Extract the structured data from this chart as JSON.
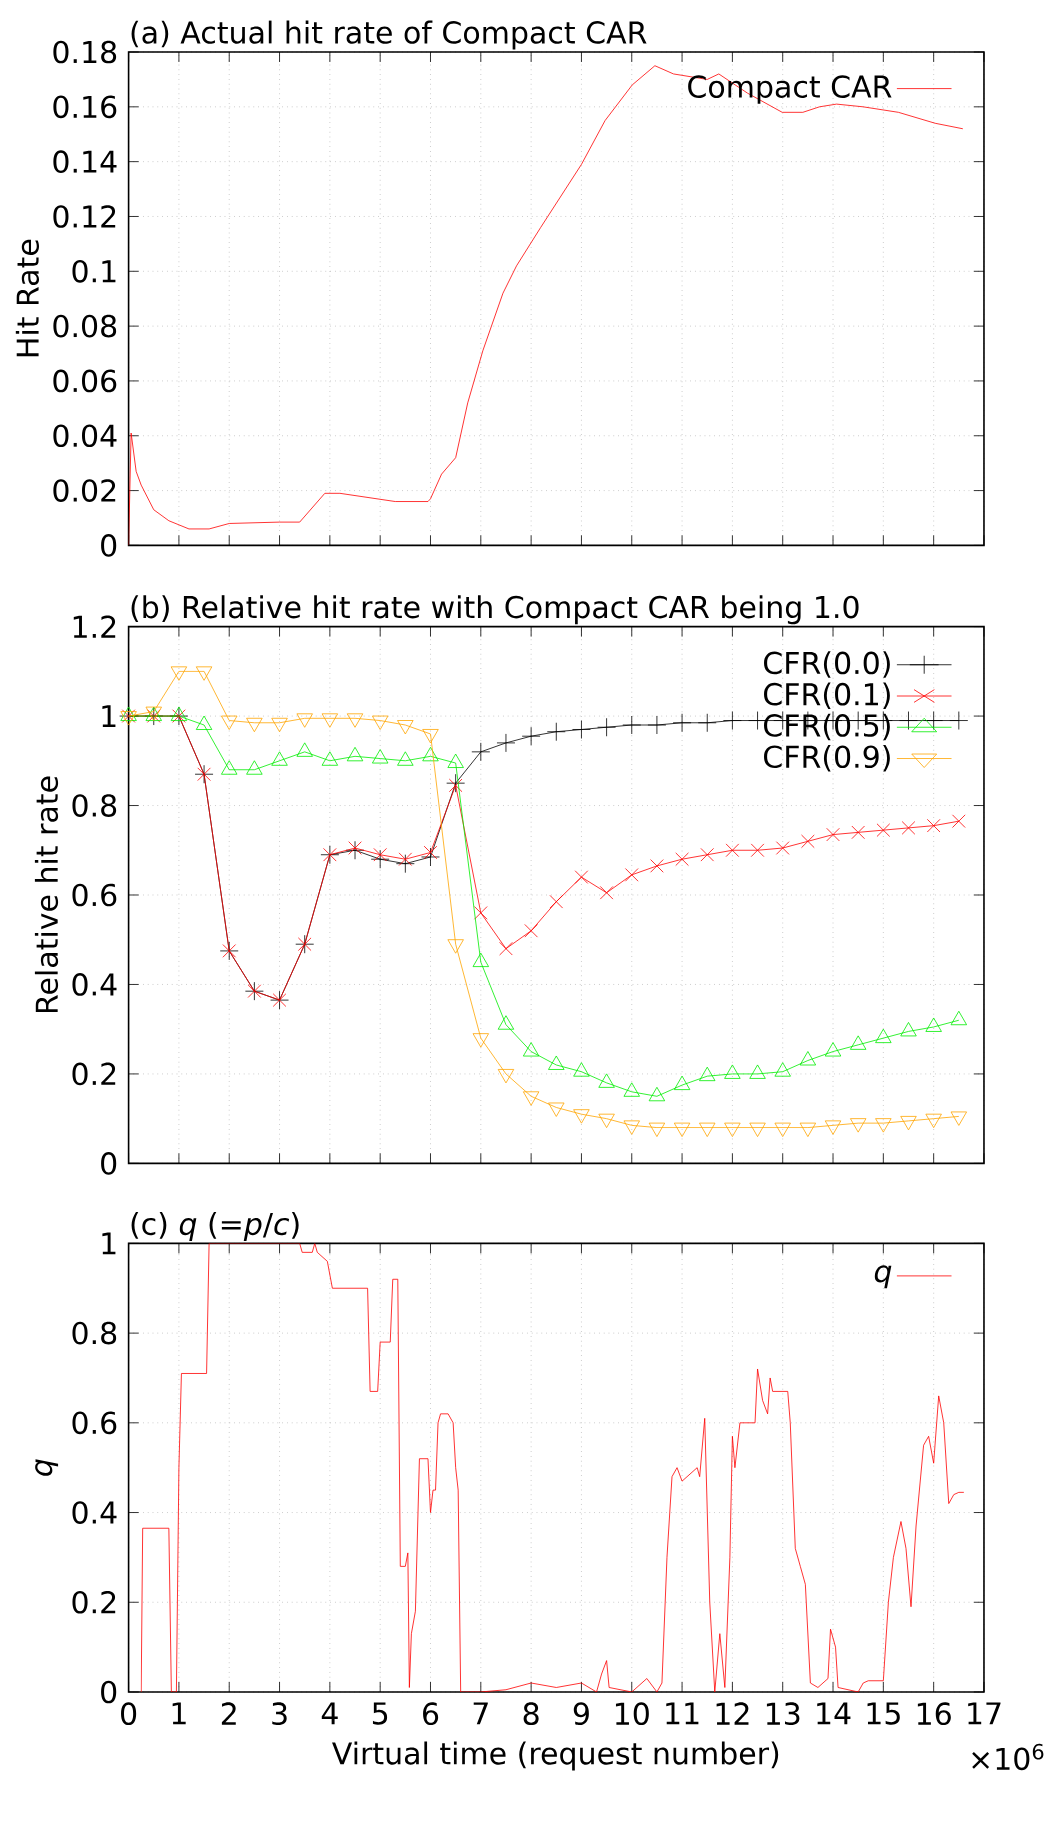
{
  "chart_data": [
    {
      "type": "line",
      "title": "(a) Actual hit rate of Compact CAR",
      "ylabel": "Hit Rate",
      "xlim": [
        0,
        17
      ],
      "xticks": [
        0,
        1,
        2,
        3,
        4,
        5,
        6,
        7,
        8,
        9,
        10,
        11,
        12,
        13,
        14,
        15,
        16,
        17
      ],
      "ylim": [
        0,
        0.18
      ],
      "yticks": [
        0,
        0.02,
        0.04,
        0.06,
        0.08,
        0.1,
        0.12,
        0.14,
        0.16,
        0.18
      ],
      "tick_labels": "y",
      "grid": true,
      "legend": "top right",
      "x": [
        0,
        0.05,
        0.15,
        0.25,
        0.5,
        0.8,
        1.2,
        1.6,
        2.0,
        3.0,
        3.4,
        3.9,
        4.2,
        5.3,
        5.95,
        6.0,
        6.22,
        6.5,
        6.74,
        7.04,
        7.44,
        7.71,
        8.19,
        9.0,
        9.47,
        10.01,
        10.46,
        10.83,
        11.5,
        11.73,
        12.3,
        12.99,
        13.4,
        13.73,
        14.07,
        14.6,
        15.3,
        16.03,
        16.58
      ],
      "series": [
        {
          "name": "Compact CAR",
          "color": "#ff0000",
          "values": [
            0,
            0.041,
            0.027,
            0.022,
            0.013,
            0.009,
            0.006,
            0.006,
            0.008,
            0.0085,
            0.0085,
            0.019,
            0.019,
            0.016,
            0.016,
            0.017,
            0.026,
            0.032,
            0.052,
            0.071,
            0.092,
            0.102,
            0.116,
            0.139,
            0.155,
            0.168,
            0.175,
            0.172,
            0.17,
            0.172,
            0.165,
            0.158,
            0.158,
            0.16,
            0.161,
            0.16,
            0.158,
            0.154,
            0.152
          ]
        }
      ]
    },
    {
      "type": "line",
      "title": "(b) Relative hit rate with Compact CAR being 1.0",
      "ylabel": "Relative hit rate",
      "xlim": [
        0,
        17
      ],
      "xticks": [
        0,
        1,
        2,
        3,
        4,
        5,
        6,
        7,
        8,
        9,
        10,
        11,
        12,
        13,
        14,
        15,
        16,
        17
      ],
      "ylim": [
        0,
        1.2
      ],
      "yticks": [
        0,
        0.2,
        0.4,
        0.6,
        0.8,
        1,
        1.2
      ],
      "tick_labels": "y",
      "grid": true,
      "legend": "top right",
      "x": [
        0,
        0.5,
        1,
        1.5,
        2,
        2.5,
        3,
        3.5,
        4,
        4.5,
        5,
        5.5,
        6,
        6.5,
        7,
        7.5,
        8,
        8.5,
        9,
        9.5,
        10,
        10.5,
        11,
        11.5,
        12,
        12.5,
        13,
        13.5,
        14,
        14.5,
        15,
        15.5,
        16,
        16.5
      ],
      "series": [
        {
          "name": "CFR(0.0)",
          "color": "#000000",
          "marker": "plus",
          "values": [
            1.0,
            1.0,
            1.0,
            0.87,
            0.475,
            0.385,
            0.365,
            0.49,
            0.69,
            0.7,
            0.68,
            0.67,
            0.685,
            0.85,
            0.92,
            0.94,
            0.955,
            0.965,
            0.97,
            0.975,
            0.98,
            0.98,
            0.985,
            0.985,
            0.99,
            0.99,
            0.99,
            0.99,
            0.99,
            0.99,
            0.99,
            0.99,
            0.99,
            0.99
          ]
        },
        {
          "name": "CFR(0.1)",
          "color": "#ff0000",
          "marker": "cross",
          "values": [
            1.0,
            1.0,
            1.0,
            0.87,
            0.475,
            0.385,
            0.365,
            0.49,
            0.69,
            0.705,
            0.69,
            0.68,
            0.695,
            0.845,
            0.56,
            0.48,
            0.52,
            0.585,
            0.64,
            0.605,
            0.645,
            0.665,
            0.68,
            0.69,
            0.7,
            0.7,
            0.705,
            0.72,
            0.735,
            0.74,
            0.745,
            0.75,
            0.755,
            0.765
          ]
        },
        {
          "name": "CFR(0.5)",
          "color": "#00ee00",
          "marker": "triangle",
          "values": [
            1.0,
            1.0,
            1.0,
            0.98,
            0.88,
            0.88,
            0.9,
            0.92,
            0.9,
            0.91,
            0.905,
            0.9,
            0.91,
            0.895,
            0.45,
            0.31,
            0.25,
            0.22,
            0.205,
            0.18,
            0.16,
            0.15,
            0.175,
            0.195,
            0.2,
            0.2,
            0.205,
            0.23,
            0.25,
            0.265,
            0.28,
            0.295,
            0.305,
            0.32
          ]
        },
        {
          "name": "CFR(0.9)",
          "color": "#ffa500",
          "marker": "triangle_down",
          "values": [
            1.0,
            1.01,
            1.1,
            1.1,
            0.99,
            0.985,
            0.985,
            0.995,
            0.995,
            0.995,
            0.99,
            0.98,
            0.96,
            0.49,
            0.28,
            0.2,
            0.15,
            0.125,
            0.11,
            0.1,
            0.085,
            0.08,
            0.08,
            0.08,
            0.08,
            0.08,
            0.08,
            0.08,
            0.085,
            0.09,
            0.09,
            0.095,
            0.1,
            0.105
          ]
        }
      ]
    },
    {
      "type": "line",
      "title": "(c) *q* (=*p*/*c*)",
      "xlabel": "Virtual time (request number)",
      "ylabel": "*q*",
      "annotations": [
        "×10$^{6}$"
      ],
      "xlim": [
        0,
        17
      ],
      "xticks": [
        0,
        1,
        2,
        3,
        4,
        5,
        6,
        7,
        8,
        9,
        10,
        11,
        12,
        13,
        14,
        15,
        16,
        17
      ],
      "ylim": [
        0,
        1
      ],
      "yticks": [
        0,
        0.2,
        0.4,
        0.6,
        0.8,
        1
      ],
      "grid": true,
      "legend": "top right",
      "x": [
        0.25,
        0.28,
        0.8,
        0.85,
        0.95,
        1.0,
        1.05,
        1.55,
        1.6,
        3.4,
        3.45,
        3.65,
        3.7,
        3.75,
        3.95,
        4.05,
        4.75,
        4.8,
        4.95,
        5.0,
        5.2,
        5.25,
        5.35,
        5.4,
        5.5,
        5.55,
        5.58,
        5.62,
        5.7,
        5.78,
        5.95,
        6.0,
        6.05,
        6.1,
        6.15,
        6.2,
        6.35,
        6.45,
        6.5,
        6.55,
        6.6,
        7.0,
        7.5,
        8.0,
        8.5,
        9.0,
        9.3,
        9.4,
        9.5,
        9.55,
        10.0,
        10.3,
        10.5,
        10.6,
        10.7,
        10.8,
        10.9,
        11.0,
        11.3,
        11.35,
        11.45,
        11.55,
        11.65,
        11.75,
        11.85,
        11.95,
        12.0,
        12.05,
        12.15,
        12.45,
        12.5,
        12.6,
        12.7,
        12.75,
        12.8,
        13.1,
        13.15,
        13.25,
        13.35,
        13.45,
        13.55,
        13.7,
        13.9,
        13.95,
        14.05,
        14.1,
        14.5,
        14.6,
        14.7,
        15.0,
        15.1,
        15.2,
        15.35,
        15.45,
        15.55,
        15.65,
        15.8,
        15.9,
        16.0,
        16.1,
        16.2,
        16.3,
        16.4,
        16.5,
        16.6
      ],
      "series": [
        {
          "name": "*q*",
          "color": "#ff0000",
          "values": [
            0,
            0.365,
            0.365,
            0,
            0,
            0.5,
            0.71,
            0.71,
            1.0,
            1.0,
            0.98,
            0.98,
            1.0,
            0.98,
            0.96,
            0.9,
            0.9,
            0.67,
            0.67,
            0.78,
            0.78,
            0.92,
            0.92,
            0.28,
            0.28,
            0.31,
            0.01,
            0.13,
            0.18,
            0.52,
            0.52,
            0.4,
            0.45,
            0.45,
            0.6,
            0.62,
            0.62,
            0.6,
            0.5,
            0.45,
            0,
            0,
            0.005,
            0.02,
            0.01,
            0.02,
            0,
            0.04,
            0.07,
            0.01,
            0,
            0.03,
            0,
            0.02,
            0.3,
            0.48,
            0.5,
            0.47,
            0.5,
            0.48,
            0.61,
            0.2,
            0,
            0.13,
            0.01,
            0.3,
            0.57,
            0.5,
            0.6,
            0.6,
            0.72,
            0.65,
            0.62,
            0.7,
            0.67,
            0.67,
            0.6,
            0.32,
            0.28,
            0.24,
            0.02,
            0.01,
            0.03,
            0.14,
            0.1,
            0.01,
            0,
            0.02,
            0.025,
            0.025,
            0.2,
            0.3,
            0.38,
            0.32,
            0.19,
            0.37,
            0.55,
            0.57,
            0.51,
            0.66,
            0.6,
            0.42,
            0.44,
            0.445,
            0.445
          ]
        }
      ]
    }
  ]
}
